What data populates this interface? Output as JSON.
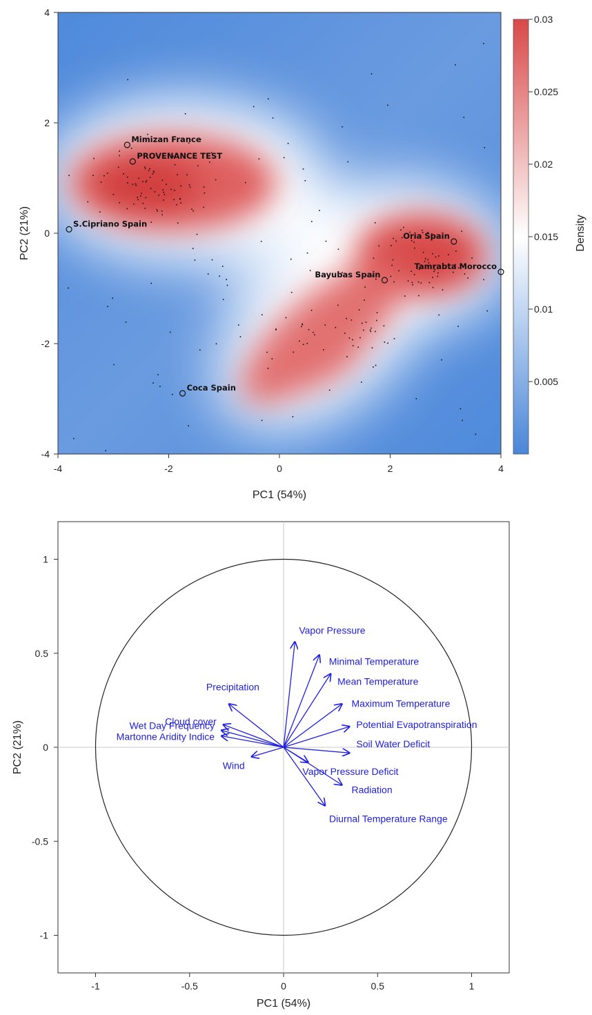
{
  "chart_data": [
    {
      "type": "scatter",
      "subtype": "density-heatmap",
      "title": "",
      "xlabel": "PC1 (54%)",
      "ylabel": "PC2 (21%)",
      "xlim": [
        -4,
        4
      ],
      "ylim": [
        -4,
        4
      ],
      "xticks": [
        "-4",
        "-2",
        "0",
        "2",
        "4"
      ],
      "yticks": [
        "4",
        "2",
        "0",
        "-2",
        "-4"
      ],
      "colorbar": {
        "label": "Density",
        "ticks": [
          "0.03",
          "0.025",
          "0.02",
          "0.015",
          "0.01",
          "0.005"
        ],
        "range": [
          0,
          0.03
        ],
        "low_color": "#4a86d8",
        "mid_color": "#ffffff",
        "high_color": "#d94848"
      },
      "labeled_points": [
        {
          "name": "Mimizan France",
          "x": -2.75,
          "y": 1.6
        },
        {
          "name": "PROVENANCE TEST",
          "x": -2.65,
          "y": 1.3
        },
        {
          "name": "S.Cipriano Spain",
          "x": -3.8,
          "y": 0.07
        },
        {
          "name": "Oria Spain",
          "x": 3.15,
          "y": -0.15
        },
        {
          "name": "Tamrabta Morocco",
          "x": 4.0,
          "y": -0.7
        },
        {
          "name": "Bayubas Spain",
          "x": 1.9,
          "y": -0.85
        },
        {
          "name": "Coca Spain",
          "x": -1.75,
          "y": -2.9
        }
      ]
    },
    {
      "type": "scatter",
      "subtype": "correlation-circle",
      "title": "",
      "xlabel": "PC1 (54%)",
      "ylabel": "PC2 (21%)",
      "xlim": [
        -1.2,
        1.2
      ],
      "ylim": [
        -1.2,
        1.2
      ],
      "xticks": [
        {
          "label": "-1",
          "value": -1
        },
        {
          "label": "-0.5",
          "value": -0.5
        },
        {
          "label": "0",
          "value": 0
        },
        {
          "label": "0.5",
          "value": 0.5
        },
        {
          "label": "1",
          "value": 1
        }
      ],
      "yticks": [
        {
          "label": "1",
          "value": 1
        },
        {
          "label": "0.5",
          "value": 0.5
        },
        {
          "label": "0",
          "value": 0
        },
        {
          "label": "-0.5",
          "value": -0.5
        },
        {
          "label": "-1",
          "value": -1
        }
      ],
      "arrow_color": "#2020e0",
      "variables": [
        {
          "name": "Vapor Pressure",
          "x": 0.06,
          "y": 0.56
        },
        {
          "name": "Minimal Temperature",
          "x": 0.19,
          "y": 0.49
        },
        {
          "name": "Mean Temperature",
          "x": 0.25,
          "y": 0.39
        },
        {
          "name": "Maximum Temperature",
          "x": 0.31,
          "y": 0.23
        },
        {
          "name": "Potential Evapotranspiration",
          "x": 0.35,
          "y": 0.11
        },
        {
          "name": "Soil Water Deficit",
          "x": 0.35,
          "y": -0.03
        },
        {
          "name": "Vapor Pressure Deficit",
          "x": 0.13,
          "y": -0.08
        },
        {
          "name": "Radiation",
          "x": 0.31,
          "y": -0.2
        },
        {
          "name": "Diurnal Temperature Range",
          "x": 0.22,
          "y": -0.31
        },
        {
          "name": "Precipitation",
          "x": -0.29,
          "y": 0.23
        },
        {
          "name": "Cloud cover",
          "x": -0.32,
          "y": 0.12
        },
        {
          "name": "Wet Day Frequency",
          "x": -0.33,
          "y": 0.09
        },
        {
          "name": "Martonne Aridity Indice",
          "x": -0.33,
          "y": 0.06
        },
        {
          "name": "Wind",
          "x": -0.17,
          "y": -0.05
        }
      ]
    }
  ]
}
